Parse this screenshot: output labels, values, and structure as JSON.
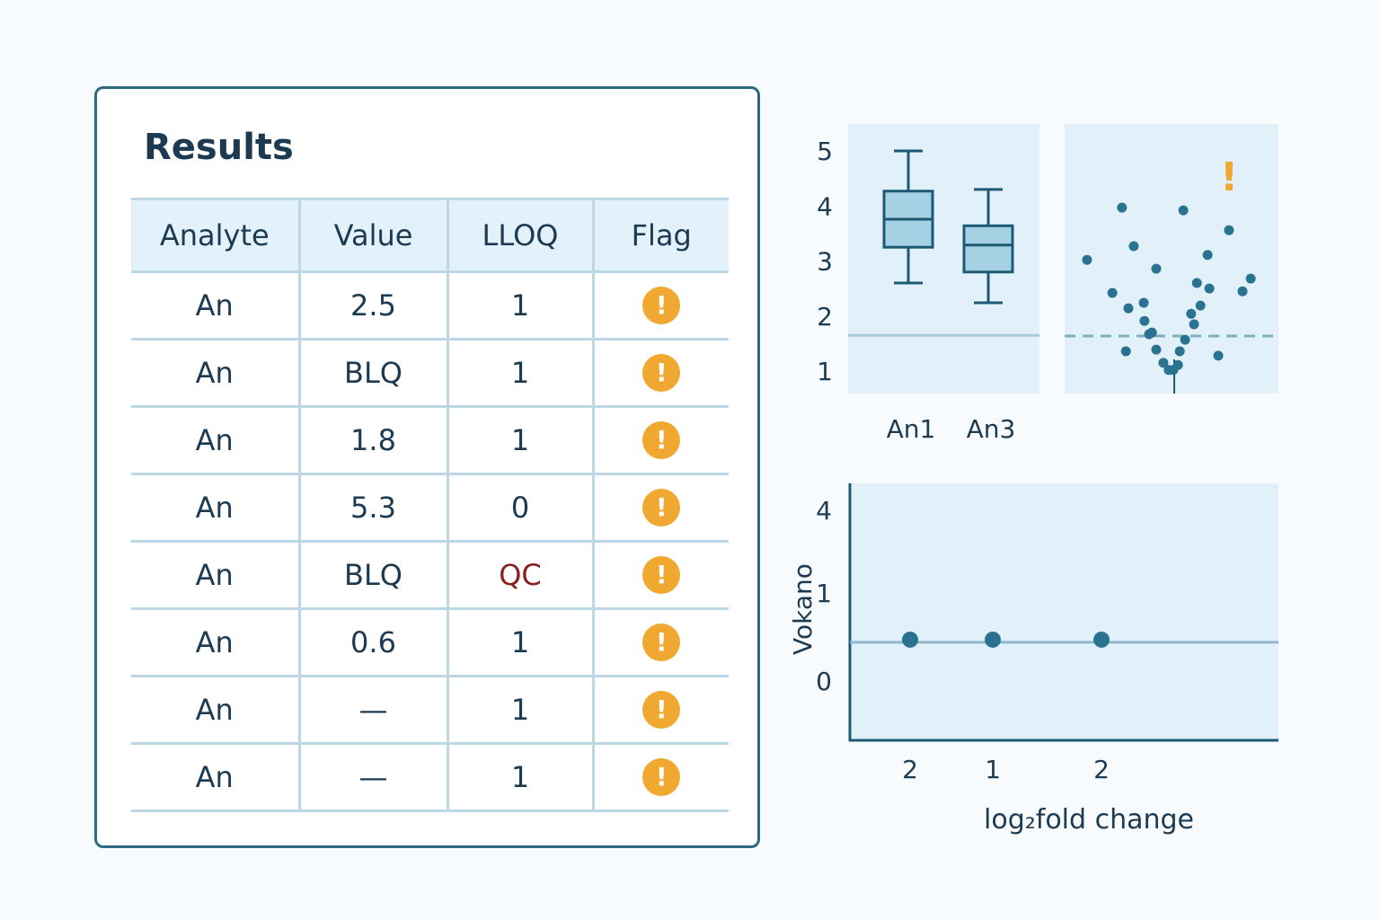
{
  "results": {
    "title": "Results",
    "columns": [
      "Analyte",
      "Value",
      "LLOQ",
      "Flag"
    ],
    "rows": [
      {
        "analyte": "An",
        "value": "2.5",
        "lloq": "1",
        "flag": "!"
      },
      {
        "analyte": "An",
        "value": "BLQ",
        "lloq": "1",
        "flag": "!"
      },
      {
        "analyte": "An",
        "value": "1.8",
        "lloq": "1",
        "flag": "!"
      },
      {
        "analyte": "An",
        "value": "5.3",
        "lloq": "0",
        "flag": "!"
      },
      {
        "analyte": "An",
        "value": "BLQ",
        "lloq": "QC",
        "flag": "!"
      },
      {
        "analyte": "An",
        "value": "0.6",
        "lloq": "1",
        "flag": "!"
      },
      {
        "analyte": "An",
        "value": "—",
        "lloq": "1",
        "flag": "!"
      },
      {
        "analyte": "An",
        "value": "—",
        "lloq": "1",
        "flag": "!"
      }
    ],
    "flag_icon": "warning-circle-icon",
    "colors": {
      "flag": "#f0a830",
      "qc_text": "#8b1f1f",
      "border": "#2b6a80",
      "header_bg": "#e3f1fa"
    }
  },
  "chart_data": [
    {
      "type": "box",
      "ylim": [
        0.6,
        5.4
      ],
      "yticks": [
        "1",
        "2",
        "3",
        "4",
        "5"
      ],
      "reference_line": 1.65,
      "categories": [
        "An1",
        "An3"
      ],
      "boxes": [
        {
          "name": "An1",
          "min": 2.6,
          "q1": 3.25,
          "median": 3.76,
          "q3": 4.27,
          "max": 5.0
        },
        {
          "name": "An3",
          "min": 2.24,
          "q1": 2.8,
          "median": 3.29,
          "q3": 3.64,
          "max": 4.3
        }
      ],
      "colors": {
        "box_fill": "#a6d0e4",
        "stroke": "#1d5a73",
        "panel": "#e1f0f9"
      }
    },
    {
      "type": "scatter",
      "ylim": [
        0.6,
        5.4
      ],
      "xlim": [
        -3,
        3
      ],
      "threshold_line": 1.65,
      "threshold_style": "dashed",
      "annotation": "!",
      "points": [
        [
          -2.37,
          3.02
        ],
        [
          -1.39,
          3.97
        ],
        [
          0.33,
          3.92
        ],
        [
          -1.06,
          3.27
        ],
        [
          -0.43,
          2.86
        ],
        [
          1.61,
          3.56
        ],
        [
          1.01,
          3.11
        ],
        [
          2.22,
          2.68
        ],
        [
          1.99,
          2.45
        ],
        [
          -1.66,
          2.42
        ],
        [
          0.71,
          2.6
        ],
        [
          1.06,
          2.5
        ],
        [
          -1.21,
          2.14
        ],
        [
          -0.78,
          2.24
        ],
        [
          0.81,
          2.19
        ],
        [
          0.55,
          2.04
        ],
        [
          -0.76,
          1.91
        ],
        [
          0.63,
          1.85
        ],
        [
          -0.55,
          1.7
        ],
        [
          -0.63,
          1.67
        ],
        [
          0.38,
          1.57
        ],
        [
          -1.28,
          1.36
        ],
        [
          -0.43,
          1.39
        ],
        [
          0.23,
          1.36
        ],
        [
          1.31,
          1.28
        ],
        [
          -0.23,
          1.15
        ],
        [
          0.18,
          1.11
        ],
        [
          -0.08,
          1.02
        ],
        [
          0.05,
          1.02
        ]
      ],
      "colors": {
        "point": "#2a7390",
        "annotation": "#f0a830",
        "panel": "#e1f0f9"
      }
    },
    {
      "type": "scatter",
      "ylabel": "Vokano",
      "xlabel": "log₂fold change",
      "yticks": [
        "4",
        "1",
        "0"
      ],
      "xticks": [
        "2",
        "1",
        "2"
      ],
      "reference_line": 0.44,
      "points": [
        {
          "x": "2",
          "y": 0.47
        },
        {
          "x": "1",
          "y": 0.47
        },
        {
          "x": "2",
          "y": 0.47
        }
      ],
      "colors": {
        "point": "#2a7390",
        "line": "#8fb8cc",
        "axis": "#1d5a73",
        "panel": "#e1f0f9"
      }
    }
  ]
}
